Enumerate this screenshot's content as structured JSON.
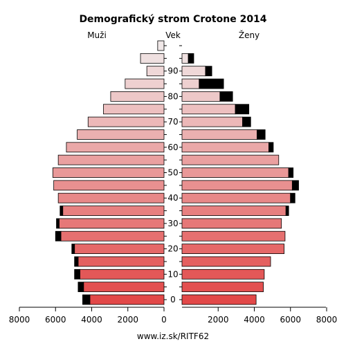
{
  "chart_data": {
    "type": "bar",
    "title": "Demografický strom Crotone 2014",
    "left_label": "Muži",
    "center_label": "Vek",
    "right_label": "Ženy",
    "footer": "www.iz.sk/RITF62",
    "age_ticks": [
      "0",
      "10",
      "20",
      "30",
      "40",
      "50",
      "60",
      "70",
      "80",
      "90"
    ],
    "x_ticks": [
      "8000",
      "6000",
      "4000",
      "2000",
      "0",
      "2000",
      "4000",
      "6000",
      "8000"
    ],
    "xlim": [
      0,
      8000
    ],
    "legend": "none",
    "grid": false,
    "series": [
      {
        "name": "",
        "side": "male",
        "base": [
          4100,
          4450,
          4650,
          4750,
          4950,
          5700,
          5800,
          5600,
          5850,
          6100,
          6150,
          5850,
          5400,
          4800,
          4200,
          3350,
          2950,
          2150,
          950,
          1300,
          350
        ],
        "excess": [
          400,
          300,
          300,
          200,
          150,
          300,
          150,
          150,
          0,
          0,
          0,
          0,
          0,
          0,
          0,
          0,
          0,
          0,
          0,
          0,
          0
        ]
      },
      {
        "name": "",
        "side": "female",
        "base": [
          4100,
          4500,
          4550,
          4900,
          5650,
          5700,
          5500,
          5750,
          6000,
          6100,
          5900,
          5350,
          4800,
          4150,
          3350,
          2950,
          2100,
          950,
          1300,
          350,
          0
        ],
        "excess": [
          0,
          0,
          0,
          0,
          0,
          0,
          0,
          150,
          250,
          350,
          250,
          0,
          250,
          450,
          450,
          750,
          700,
          1350,
          350,
          300,
          0
        ]
      }
    ],
    "age_groups": [
      "0-4",
      "5-9",
      "10-14",
      "15-19",
      "20-24",
      "25-29",
      "30-34",
      "35-39",
      "40-44",
      "45-49",
      "50-54",
      "55-59",
      "60-64",
      "65-69",
      "70-74",
      "75-79",
      "80-84",
      "85-89",
      "90-94",
      "95-99",
      "100+"
    ]
  }
}
